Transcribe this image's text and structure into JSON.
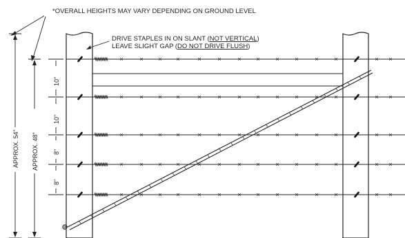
{
  "notes": {
    "heights_note": "*OVERALL HEIGHTS MAY VARY DEPENDING ON GROUND LEVEL",
    "staple_line1_prefix": "DRIVE STAPLES IN ON SLANT (",
    "staple_line1_emph": "NOT VERTICAL",
    "staple_line1_suffix": ")",
    "staple_line2_prefix": "LEAVE SLIGHT GAP (",
    "staple_line2_emph": "DO NOT DRIVE FLUSH",
    "staple_line2_suffix": ")"
  },
  "dimensions": {
    "overall": "APPROX. 54\"",
    "fence": "APPROX. 48\"",
    "spacing": [
      "10\"",
      "10\"",
      "8\"",
      "8\""
    ]
  }
}
